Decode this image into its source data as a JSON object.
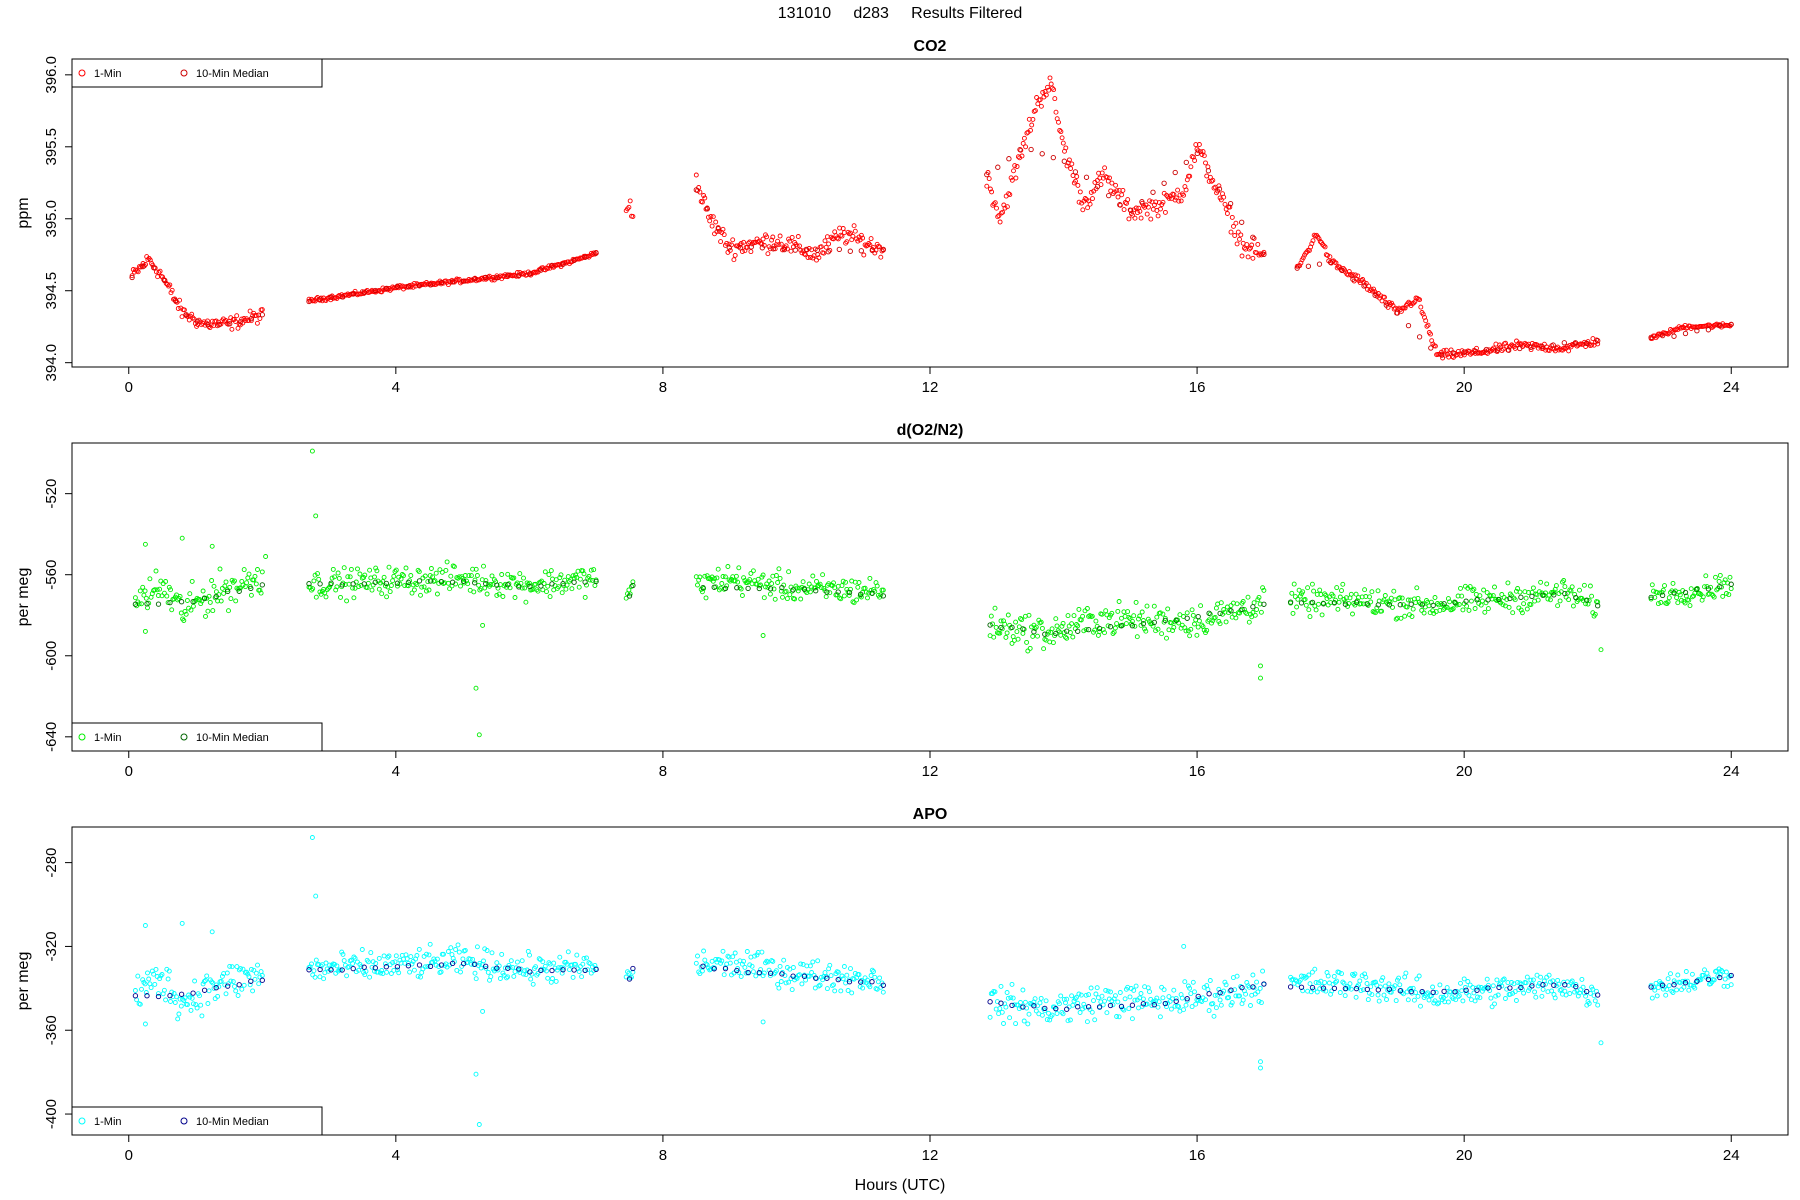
{
  "figure_title": "131010     d283     Results Filtered",
  "xlabel": "Hours (UTC)",
  "legend_labels": {
    "one_min": "1-Min",
    "ten_min": "10-Min Median"
  },
  "chart_data": [
    {
      "type": "scatter",
      "title": "CO2",
      "ylabel": "ppm",
      "xlim": [
        -0.85,
        24.85
      ],
      "ylim": [
        393.97,
        396.11
      ],
      "xticks": [
        0,
        4,
        8,
        12,
        16,
        20,
        24
      ],
      "yticks": [
        394.0,
        394.5,
        395.0,
        395.5,
        396.0
      ],
      "ytick_labels": [
        "394.0",
        "394.5",
        "395.0",
        "395.5",
        "396.0"
      ],
      "legend": "top-left",
      "colors": {
        "one_min": "#ff0000",
        "ten_min": "#cc0000"
      },
      "one_min_segments": [
        {
          "knots": [
            [
              0.05,
              394.6
            ],
            [
              0.3,
              394.72
            ],
            [
              0.5,
              394.6
            ],
            [
              0.8,
              394.35
            ],
            [
              1.1,
              394.27
            ],
            [
              1.5,
              394.27
            ],
            [
              2.0,
              394.33
            ]
          ],
          "noise": 0.04
        },
        {
          "knots": [
            [
              2.7,
              394.43
            ],
            [
              4.0,
              394.52
            ],
            [
              5.0,
              394.57
            ],
            [
              6.0,
              394.62
            ],
            [
              6.6,
              394.7
            ],
            [
              7.0,
              394.76
            ]
          ],
          "noise": 0.012
        },
        {
          "knots": [
            [
              7.45,
              395.1
            ],
            [
              7.55,
              395.1
            ]
          ],
          "noise": 0.08
        },
        {
          "knots": [
            [
              8.5,
              395.25
            ],
            [
              8.7,
              395.0
            ],
            [
              9.0,
              394.8
            ],
            [
              9.7,
              394.85
            ],
            [
              10.3,
              394.75
            ],
            [
              10.7,
              394.9
            ],
            [
              11.3,
              394.78
            ]
          ],
          "noise": 0.06
        },
        {
          "knots": [
            [
              12.85,
              395.3
            ],
            [
              13.05,
              395.0
            ],
            [
              13.4,
              395.5
            ],
            [
              13.6,
              395.8
            ],
            [
              13.8,
              395.95
            ],
            [
              14.0,
              395.5
            ],
            [
              14.3,
              395.1
            ],
            [
              14.6,
              395.3
            ],
            [
              15.0,
              395.05
            ],
            [
              15.5,
              395.1
            ],
            [
              15.8,
              395.2
            ],
            [
              16.0,
              395.5
            ],
            [
              16.4,
              395.1
            ],
            [
              16.7,
              394.8
            ],
            [
              17.0,
              394.75
            ]
          ],
          "noise": 0.06
        },
        {
          "knots": [
            [
              17.5,
              394.65
            ],
            [
              17.8,
              394.9
            ],
            [
              18.0,
              394.7
            ],
            [
              18.5,
              394.55
            ],
            [
              19.0,
              394.35
            ],
            [
              19.3,
              394.45
            ],
            [
              19.6,
              394.05
            ],
            [
              20.2,
              394.07
            ],
            [
              20.8,
              394.12
            ],
            [
              21.5,
              394.1
            ],
            [
              22.0,
              394.15
            ]
          ],
          "noise": 0.025
        },
        {
          "knots": [
            [
              22.8,
              394.17
            ],
            [
              23.3,
              394.25
            ],
            [
              24.0,
              394.26
            ]
          ],
          "noise": 0.012
        }
      ],
      "ten_min_segments": [
        {
          "knots": [
            [
              0.05,
              394.6
            ],
            [
              0.3,
              394.7
            ],
            [
              0.5,
              394.6
            ],
            [
              0.8,
              394.35
            ],
            [
              1.1,
              394.27
            ],
            [
              1.5,
              394.27
            ],
            [
              2.0,
              394.33
            ]
          ]
        },
        {
          "knots": [
            [
              2.7,
              394.43
            ],
            [
              4.0,
              394.52
            ],
            [
              5.0,
              394.57
            ],
            [
              6.0,
              394.62
            ],
            [
              6.6,
              394.7
            ],
            [
              7.0,
              394.76
            ]
          ]
        },
        {
          "knots": [
            [
              8.5,
              395.2
            ],
            [
              9.0,
              394.8
            ],
            [
              10.3,
              394.78
            ],
            [
              11.3,
              394.78
            ]
          ]
        },
        {
          "knots": [
            [
              12.85,
              395.3
            ],
            [
              13.4,
              395.5
            ],
            [
              14.0,
              395.4
            ],
            [
              15.0,
              395.05
            ],
            [
              16.0,
              395.45
            ],
            [
              17.0,
              394.75
            ]
          ]
        },
        {
          "knots": [
            [
              17.5,
              394.65
            ],
            [
              18.0,
              394.7
            ],
            [
              19.0,
              394.35
            ],
            [
              19.6,
              394.05
            ],
            [
              20.8,
              394.1
            ],
            [
              22.0,
              394.15
            ]
          ]
        },
        {
          "knots": [
            [
              22.8,
              394.17
            ],
            [
              24.0,
              394.26
            ]
          ]
        }
      ]
    },
    {
      "type": "scatter",
      "title": "d(O2/N2)",
      "ylabel": "per meg",
      "xlim": [
        -0.85,
        24.85
      ],
      "ylim": [
        -647,
        -495
      ],
      "xticks": [
        0,
        4,
        8,
        12,
        16,
        20,
        24
      ],
      "yticks": [
        -640,
        -600,
        -560,
        -520
      ],
      "ytick_labels": [
        "-640",
        "-600",
        "-560",
        "-520"
      ],
      "legend": "bottom-left",
      "colors": {
        "one_min": "#00ee00",
        "ten_min": "#006400"
      },
      "one_min_segments": [
        {
          "knots": [
            [
              0.1,
              -573
            ],
            [
              0.5,
              -566
            ],
            [
              0.8,
              -578
            ],
            [
              1.2,
              -570
            ],
            [
              1.6,
              -566
            ],
            [
              2.0,
              -560
            ]
          ],
          "noise": 8
        },
        {
          "knots": [
            [
              2.7,
              -565
            ],
            [
              4.0,
              -563
            ],
            [
              5.0,
              -562
            ],
            [
              6.0,
              -565
            ],
            [
              7.0,
              -562
            ]
          ],
          "noise": 6
        },
        {
          "knots": [
            [
              7.45,
              -570
            ],
            [
              7.55,
              -567
            ]
          ],
          "noise": 4
        },
        {
          "knots": [
            [
              8.5,
              -565
            ],
            [
              9.0,
              -562
            ],
            [
              10.0,
              -567
            ],
            [
              11.3,
              -568
            ]
          ],
          "noise": 6
        },
        {
          "knots": [
            [
              12.9,
              -585
            ],
            [
              13.8,
              -589
            ],
            [
              14.5,
              -582
            ],
            [
              15.5,
              -583
            ],
            [
              16.2,
              -582
            ],
            [
              17.0,
              -573
            ]
          ],
          "noise": 7
        },
        {
          "knots": [
            [
              17.4,
              -573
            ],
            [
              18.5,
              -573
            ],
            [
              19.5,
              -575
            ],
            [
              20.5,
              -572
            ],
            [
              21.5,
              -569
            ],
            [
              22.0,
              -575
            ]
          ],
          "noise": 6
        },
        {
          "knots": [
            [
              22.8,
              -570
            ],
            [
              23.5,
              -568
            ],
            [
              24.0,
              -564
            ]
          ],
          "noise": 5
        }
      ],
      "ten_min_segments": [
        {
          "knots": [
            [
              0.1,
              -575
            ],
            [
              1.0,
              -573
            ],
            [
              2.0,
              -565
            ]
          ]
        },
        {
          "knots": [
            [
              2.7,
              -565
            ],
            [
              4.0,
              -564
            ],
            [
              5.0,
              -563
            ],
            [
              6.0,
              -566
            ],
            [
              7.0,
              -563
            ]
          ]
        },
        {
          "knots": [
            [
              7.5,
              -570
            ],
            [
              7.55,
              -565
            ]
          ]
        },
        {
          "knots": [
            [
              8.6,
              -566
            ],
            [
              10.0,
              -567
            ],
            [
              11.3,
              -570
            ]
          ]
        },
        {
          "knots": [
            [
              12.9,
              -585
            ],
            [
              13.8,
              -589
            ],
            [
              15.5,
              -583
            ],
            [
              17.0,
              -575
            ]
          ]
        },
        {
          "knots": [
            [
              17.4,
              -574
            ],
            [
              19.5,
              -575
            ],
            [
              21.5,
              -569
            ],
            [
              22.0,
              -575
            ]
          ]
        },
        {
          "knots": [
            [
              22.8,
              -571
            ],
            [
              24.0,
              -565
            ]
          ]
        }
      ],
      "one_min_outliers": [
        [
          2.75,
          -499
        ],
        [
          2.8,
          -531
        ],
        [
          0.25,
          -588
        ],
        [
          0.8,
          -542
        ],
        [
          0.25,
          -545
        ],
        [
          1.25,
          -546
        ],
        [
          2.05,
          -551
        ],
        [
          5.2,
          -616
        ],
        [
          5.25,
          -639
        ],
        [
          5.3,
          -585
        ],
        [
          16.95,
          -605
        ],
        [
          16.95,
          -611
        ],
        [
          22.05,
          -597
        ],
        [
          9.5,
          -590
        ]
      ]
    },
    {
      "type": "scatter",
      "title": "APO",
      "ylabel": "per meg",
      "xlim": [
        -0.85,
        24.85
      ],
      "ylim": [
        -410,
        -263
      ],
      "xticks": [
        0,
        4,
        8,
        12,
        16,
        20,
        24
      ],
      "yticks": [
        -400,
        -360,
        -320,
        -280
      ],
      "ytick_labels": [
        "-400",
        "-360",
        "-320",
        "-280"
      ],
      "legend": "bottom-left",
      "colors": {
        "one_min": "#00ffff",
        "ten_min": "#00008b"
      },
      "one_min_segments": [
        {
          "knots": [
            [
              0.1,
              -342
            ],
            [
              0.5,
              -335
            ],
            [
              0.8,
              -347
            ],
            [
              1.2,
              -340
            ],
            [
              1.6,
              -336
            ],
            [
              2.0,
              -334
            ]
          ],
          "noise": 8
        },
        {
          "knots": [
            [
              2.7,
              -331
            ],
            [
              4.0,
              -329
            ],
            [
              5.0,
              -327
            ],
            [
              6.0,
              -331
            ],
            [
              7.0,
              -330
            ]
          ],
          "noise": 6
        },
        {
          "knots": [
            [
              7.45,
              -336
            ],
            [
              7.55,
              -332
            ]
          ],
          "noise": 4
        },
        {
          "knots": [
            [
              8.5,
              -329
            ],
            [
              9.0,
              -328
            ],
            [
              10.0,
              -333
            ],
            [
              11.3,
              -336
            ]
          ],
          "noise": 6
        },
        {
          "knots": [
            [
              12.9,
              -347
            ],
            [
              13.8,
              -350
            ],
            [
              14.5,
              -346
            ],
            [
              15.5,
              -346
            ],
            [
              16.2,
              -344
            ],
            [
              17.0,
              -338
            ]
          ],
          "noise": 7
        },
        {
          "knots": [
            [
              17.4,
              -338
            ],
            [
              18.5,
              -338
            ],
            [
              19.5,
              -343
            ],
            [
              20.5,
              -341
            ],
            [
              21.5,
              -338
            ],
            [
              22.0,
              -344
            ]
          ],
          "noise": 6
        },
        {
          "knots": [
            [
              22.8,
              -339
            ],
            [
              23.5,
              -336
            ],
            [
              24.0,
              -333
            ]
          ],
          "noise": 5
        }
      ],
      "ten_min_segments": [
        {
          "knots": [
            [
              0.1,
              -344
            ],
            [
              1.0,
              -342
            ],
            [
              2.0,
              -336
            ]
          ]
        },
        {
          "knots": [
            [
              2.7,
              -331
            ],
            [
              4.0,
              -330
            ],
            [
              5.0,
              -328
            ],
            [
              6.0,
              -332
            ],
            [
              7.0,
              -331
            ]
          ]
        },
        {
          "knots": [
            [
              7.5,
              -336
            ],
            [
              7.55,
              -330
            ]
          ]
        },
        {
          "knots": [
            [
              8.6,
              -330
            ],
            [
              10.0,
              -334
            ],
            [
              11.3,
              -338
            ]
          ]
        },
        {
          "knots": [
            [
              12.9,
              -347
            ],
            [
              13.8,
              -350
            ],
            [
              15.5,
              -347
            ],
            [
              17.0,
              -338
            ]
          ]
        },
        {
          "knots": [
            [
              17.4,
              -339
            ],
            [
              19.5,
              -342
            ],
            [
              21.5,
              -338
            ],
            [
              22.0,
              -343
            ]
          ]
        },
        {
          "knots": [
            [
              22.8,
              -340
            ],
            [
              24.0,
              -334
            ]
          ]
        }
      ],
      "one_min_outliers": [
        [
          2.75,
          -268
        ],
        [
          2.8,
          -296
        ],
        [
          0.25,
          -310
        ],
        [
          0.8,
          -309
        ],
        [
          0.25,
          -357
        ],
        [
          1.25,
          -313
        ],
        [
          5.2,
          -381
        ],
        [
          5.25,
          -405
        ],
        [
          5.3,
          -351
        ],
        [
          16.95,
          -375
        ],
        [
          16.95,
          -378
        ],
        [
          22.05,
          -366
        ],
        [
          15.8,
          -320
        ],
        [
          9.5,
          -356
        ]
      ]
    }
  ]
}
